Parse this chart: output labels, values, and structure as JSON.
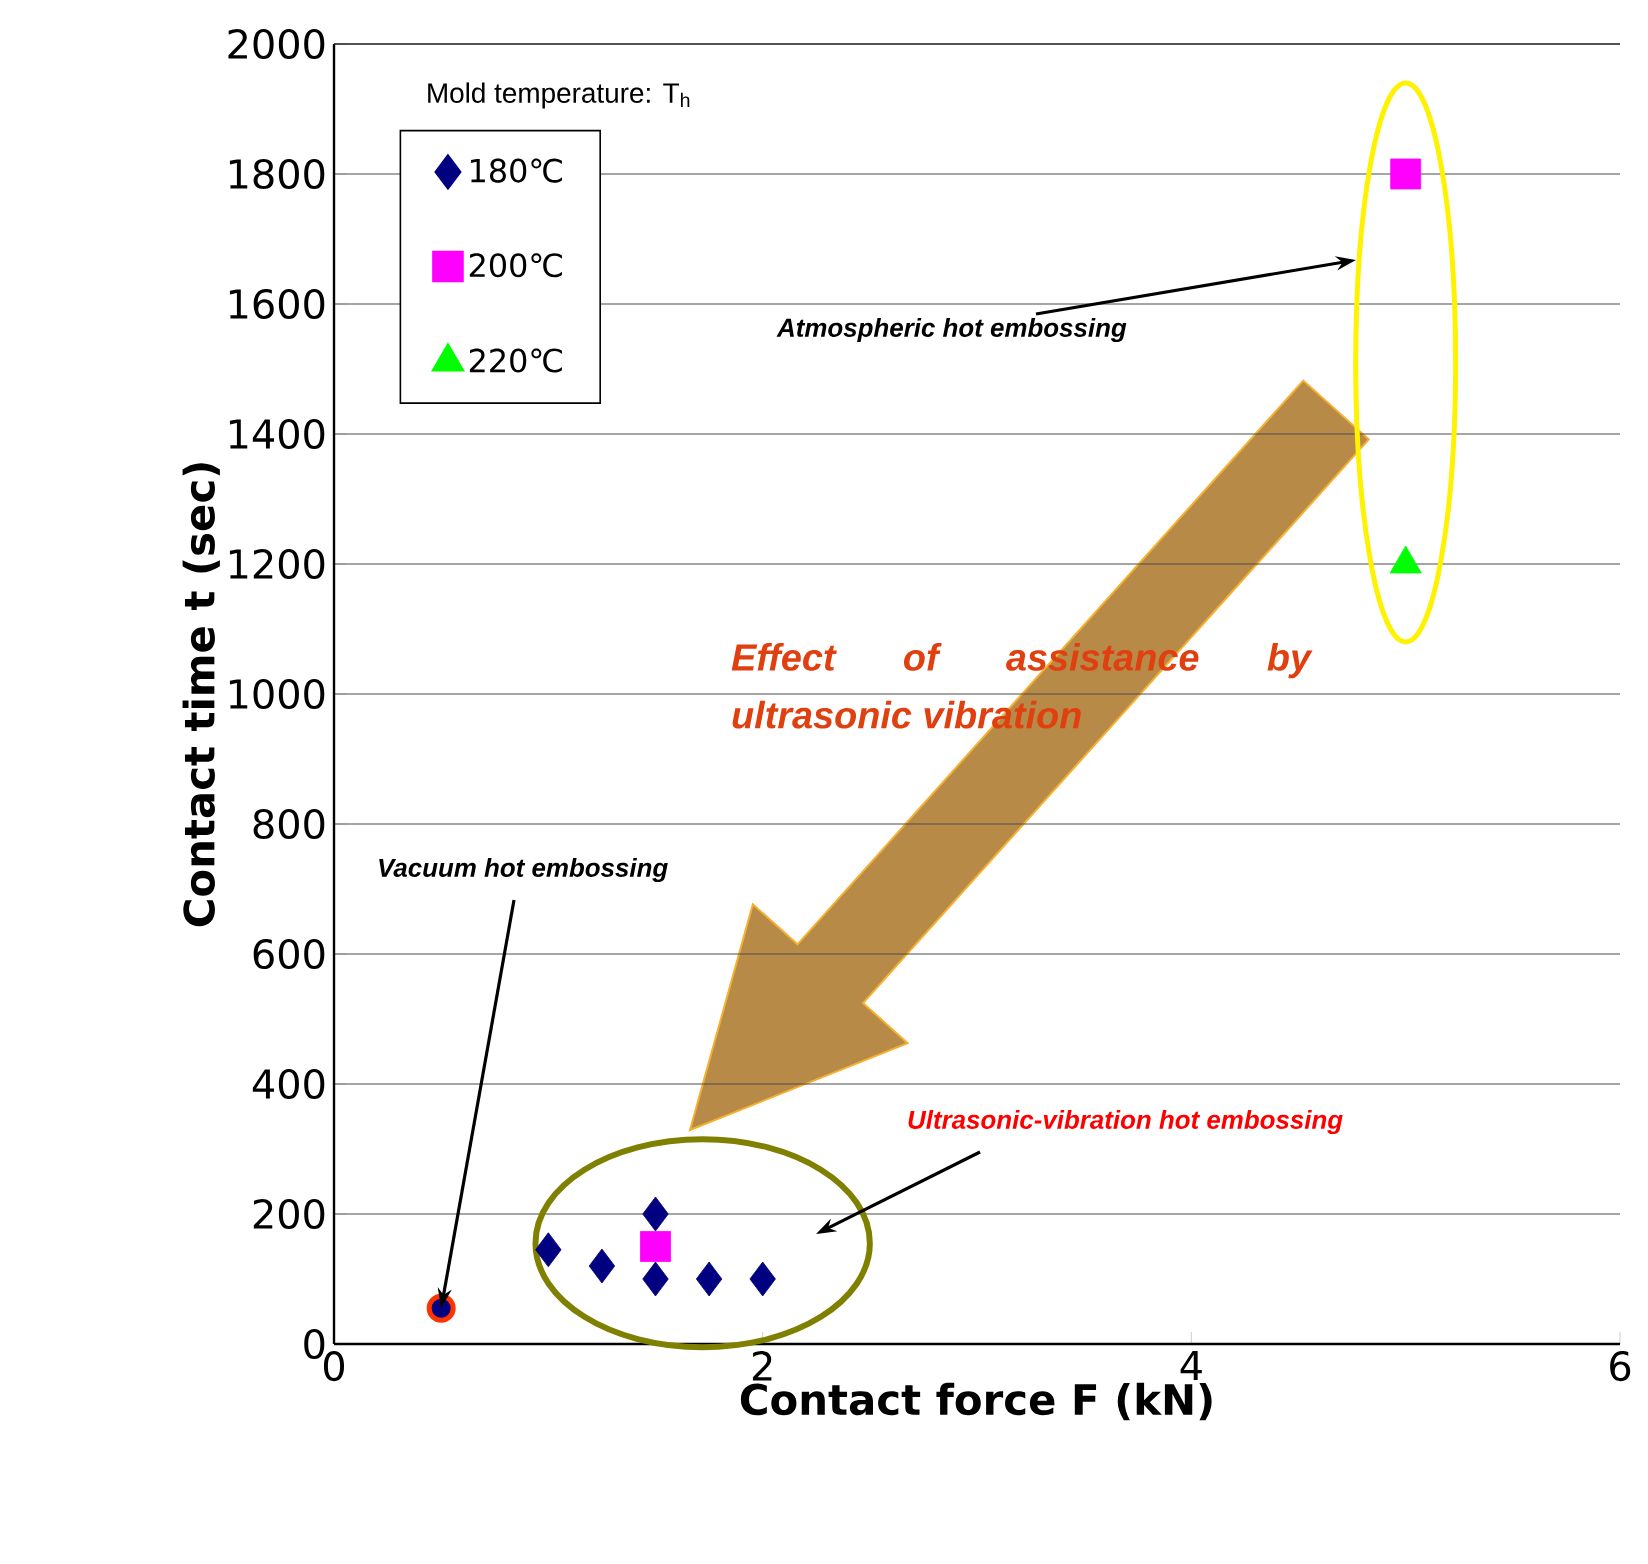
{
  "chart_data": {
    "type": "scatter",
    "xlabel": "Contact force F (kN)",
    "ylabel": "Contact time t (sec)",
    "legend_title": "Mold temperature: T$_{h}$",
    "xlim": [
      0,
      6
    ],
    "ylim": [
      0,
      2000
    ],
    "xticks": [
      0,
      2,
      4,
      6
    ],
    "yticks": [
      0,
      200,
      400,
      600,
      800,
      1000,
      1200,
      1400,
      1600,
      1800,
      2000
    ],
    "grid": "y",
    "legend": "top left",
    "series": [
      {
        "name": "180℃",
        "color": "#000080",
        "marker": "diamond",
        "x": [
          1.0,
          1.25,
          1.5,
          1.5,
          1.75,
          2.0
        ],
        "values": [
          145,
          120,
          200,
          100,
          100,
          100
        ]
      },
      {
        "name": "200℃",
        "color": "#ff00ff",
        "marker": "square",
        "x": [
          1.5,
          5.0
        ],
        "values": [
          150,
          1800
        ]
      },
      {
        "name": "220℃",
        "color": "#00ff00",
        "marker": "triangle",
        "x": [
          5.0
        ],
        "values": [
          1200
        ]
      },
      {
        "color": "#000080",
        "marker": "circle",
        "x": [
          0.5
        ],
        "values": [
          55
        ]
      }
    ],
    "annotations": [
      "Atmospheric hot embossing",
      {
        "text": "Vacuum hot embossing",
        "x": 0.5,
        "y": 55
      },
      "Ultrasonic-vibration hot embossing",
      "Effect of assistance by ultrasonic vibration"
    ]
  }
}
